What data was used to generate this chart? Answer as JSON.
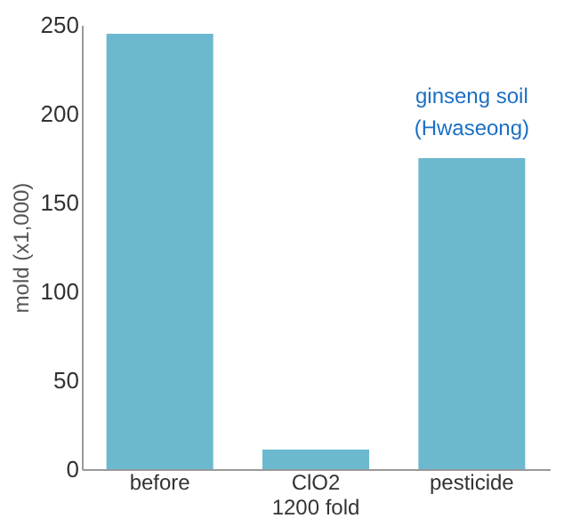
{
  "chart_data": {
    "type": "bar",
    "categories": [
      "before",
      "ClO2\n1200 fold",
      "pesticide"
    ],
    "values": [
      245,
      11,
      175
    ],
    "color": "#6bb8cf",
    "ylabel": "mold  (x1,000)",
    "ylim": [
      0,
      250
    ],
    "yticks": [
      0,
      50,
      100,
      150,
      200,
      250
    ],
    "grid": false,
    "annotations": [
      "ginseng soil\n(Hwaseong)"
    ]
  }
}
